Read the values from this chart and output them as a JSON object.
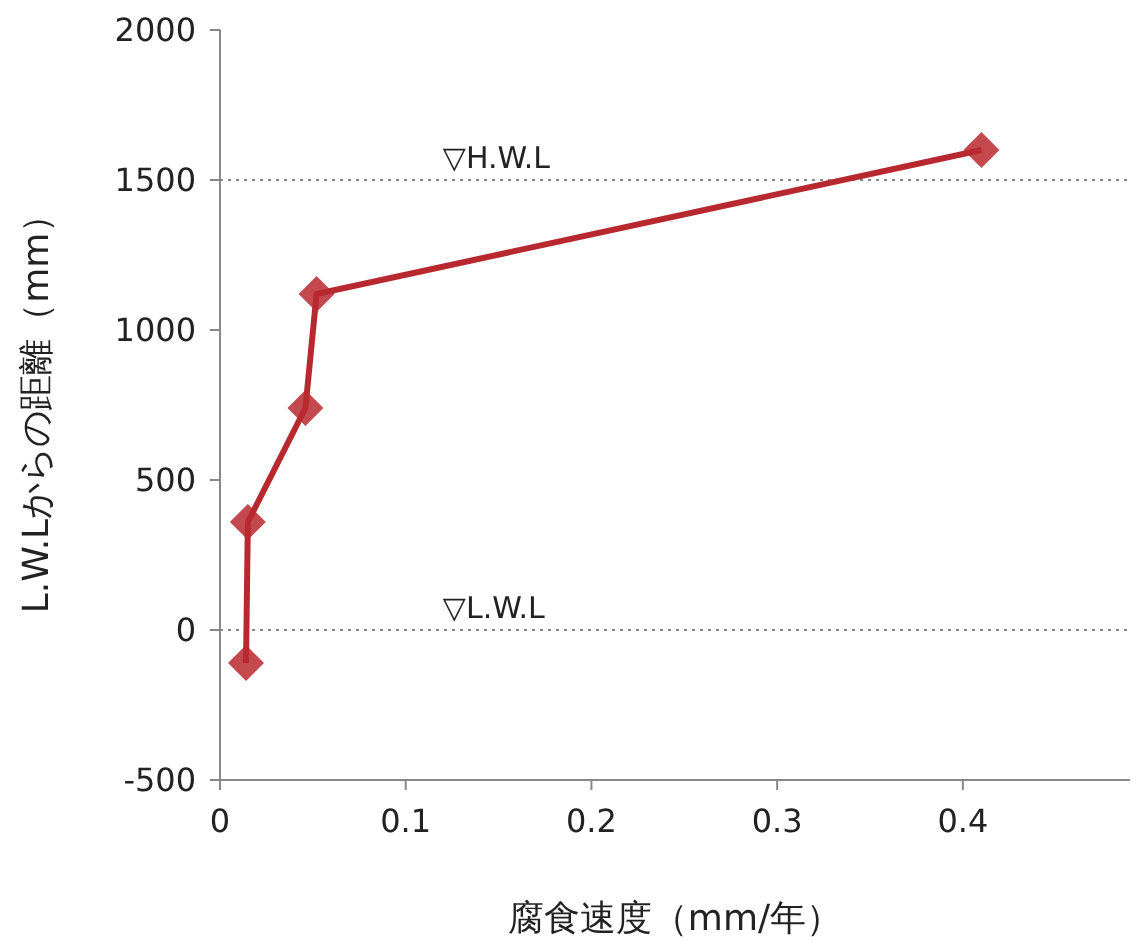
{
  "chart_data": {
    "type": "line",
    "xlabel": "腐食速度（mm/年）",
    "ylabel": "L.W.Lからの距離（mm）",
    "x": [
      0.014,
      0.015,
      0.046,
      0.052,
      0.41
    ],
    "series": [
      {
        "color": "#b8292f",
        "values": [
          -110,
          360,
          740,
          1120,
          1600
        ]
      }
    ],
    "marker": "diamond",
    "line_style": "solid",
    "grid": false,
    "xlim": [
      0,
      0.49
    ],
    "xticks": [
      0,
      0.1,
      0.2,
      0.3,
      0.4
    ],
    "ylim": [
      -500,
      2000
    ],
    "yticks": [
      -500,
      0,
      500,
      1000,
      1500,
      2000
    ],
    "ref_lines": [
      {
        "axis": "y",
        "value": 1500,
        "label": "▽H.W.L",
        "color": "#888888",
        "line_style": "dotted"
      },
      {
        "axis": "y",
        "value": 0,
        "label": "▽L.W.L",
        "color": "#888888",
        "line_style": "dotted"
      }
    ]
  }
}
